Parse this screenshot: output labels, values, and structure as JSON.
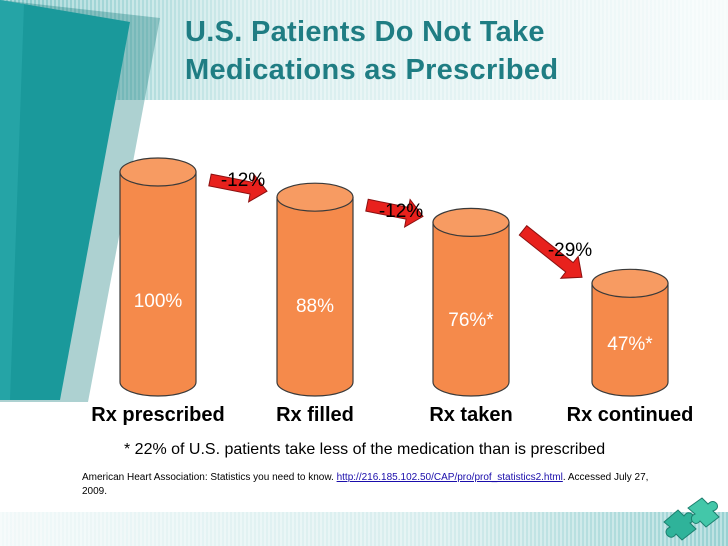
{
  "title": {
    "line1": "U.S. Patients Do Not Take",
    "line2": "Medications as Prescribed"
  },
  "colors": {
    "teal": "#1a999b",
    "teal_dark": "#137a7c",
    "title_text": "#1f7d83",
    "cylinder": "#f58a4b",
    "cylinder_top": "#f79b62",
    "cylinder_edge": "#3a3a3a",
    "arrow": "#e8211d"
  },
  "chart_data": {
    "type": "bar",
    "style": "3d-cylinder",
    "title": "U.S. Patients Do Not Take Medications as Prescribed",
    "categories": [
      "Rx prescribed",
      "Rx filled",
      "Rx taken",
      "Rx continued"
    ],
    "values": [
      100,
      88,
      76,
      47
    ],
    "value_labels": [
      "100%",
      "88%",
      "76%*",
      "47%*"
    ],
    "changes": [
      {
        "from": "Rx prescribed",
        "to": "Rx filled",
        "label": "-12%"
      },
      {
        "from": "Rx filled",
        "to": "Rx taken",
        "label": "-12%"
      },
      {
        "from": "Rx taken",
        "to": "Rx continued",
        "label": "-29%"
      }
    ],
    "xlabel": "",
    "ylabel": "",
    "ylim": [
      0,
      100
    ],
    "grid": false,
    "legend": "none"
  },
  "footnote": "* 22% of U.S. patients take less of the medication than is prescribed",
  "citation": {
    "prefix": "American Heart Association: Statistics you need to know. ",
    "link": "http://216.185.102.50/CAP/pro/prof_statistics2.html",
    "suffix": ". Accessed July 27, 2009."
  },
  "logo_icon": "puzzle-pieces-icon"
}
